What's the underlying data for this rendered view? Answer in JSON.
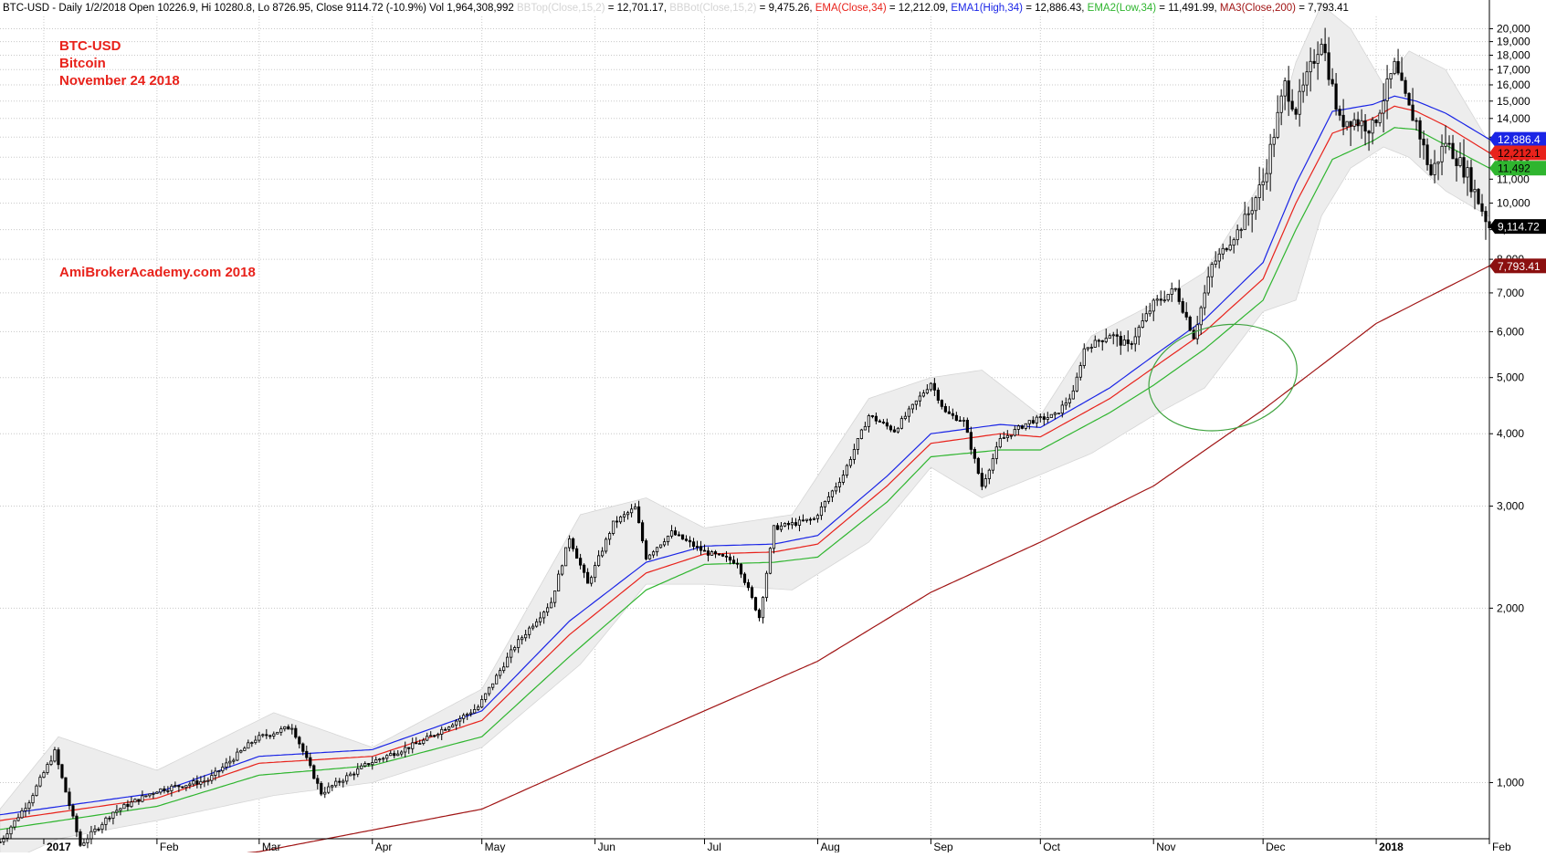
{
  "header": {
    "segments": [
      {
        "text": "BTC-USD - Daily 1/2/2018 Open 10226.9, Hi 10280.8, Lo 8726.95, Close 9114.72 (-10.9%) Vol 1,964,308,992 ",
        "color": "#000000"
      },
      {
        "text": "BBTop(Close,15,2)",
        "color": "#d4d4d4"
      },
      {
        "text": " = 12,701.17, ",
        "color": "#000000"
      },
      {
        "text": "BBBot(Close,15,2)",
        "color": "#d4d4d4"
      },
      {
        "text": " = 9,475.26, ",
        "color": "#000000"
      },
      {
        "text": "EMA(Close,34)",
        "color": "#e8221b"
      },
      {
        "text": " = 12,212.09, ",
        "color": "#000000"
      },
      {
        "text": "EMA1(High,34)",
        "color": "#1a25e6"
      },
      {
        "text": " = 12,886.43, ",
        "color": "#000000"
      },
      {
        "text": "EMA2(Low,34)",
        "color": "#2fb52f"
      },
      {
        "text": " = 11,491.99, ",
        "color": "#000000"
      },
      {
        "text": "MA3(Close,200)",
        "color": "#a01414"
      },
      {
        "text": " = 7,793.41",
        "color": "#000000"
      }
    ]
  },
  "annotations": {
    "title_lines": [
      "BTC-USD",
      "Bitcoin",
      "November 24 2018"
    ],
    "watermark": "AmiBrokerAcademy.com  2018",
    "color": "#e8221b"
  },
  "chart_data": {
    "type": "candlestick",
    "title": "BTC-USD",
    "y_scale": "log",
    "ylim": [
      800,
      21000
    ],
    "y_ticks": [
      1000,
      2000,
      3000,
      4000,
      5000,
      6000,
      7000,
      8000,
      9000,
      10000,
      11000,
      12000,
      13000,
      14000,
      15000,
      16000,
      17000,
      18000,
      19000,
      20000
    ],
    "y_tick_labels": [
      "1,000",
      "2,000",
      "3,000",
      "4,000",
      "5,000",
      "6,000",
      "7,000",
      "8,000",
      "9,000",
      "10,000",
      "11,000",
      "12,000",
      "13,000",
      "14,000",
      "15,000",
      "16,000",
      "17,000",
      "18,000",
      "19,000",
      "20,000"
    ],
    "x_range": [
      "2016-12-20",
      "2018-02-01"
    ],
    "x_ticks": [
      {
        "date": "2017-01-01",
        "label": "2017",
        "bold": true
      },
      {
        "date": "2017-02-01",
        "label": "Feb"
      },
      {
        "date": "2017-03-01",
        "label": "Mar"
      },
      {
        "date": "2017-04-01",
        "label": "Apr"
      },
      {
        "date": "2017-05-01",
        "label": "May"
      },
      {
        "date": "2017-06-01",
        "label": "Jun"
      },
      {
        "date": "2017-07-01",
        "label": "Jul"
      },
      {
        "date": "2017-08-01",
        "label": "Aug"
      },
      {
        "date": "2017-09-01",
        "label": "Sep"
      },
      {
        "date": "2017-10-01",
        "label": "Oct"
      },
      {
        "date": "2017-11-01",
        "label": "Nov"
      },
      {
        "date": "2017-12-01",
        "label": "Dec"
      },
      {
        "date": "2018-01-01",
        "label": "2018",
        "bold": true
      },
      {
        "date": "2018-02-01",
        "label": "Feb"
      }
    ],
    "grid": true,
    "close_anchors": [
      [
        "2016-12-20",
        790
      ],
      [
        "2016-12-28",
        930
      ],
      [
        "2017-01-04",
        1130
      ],
      [
        "2017-01-11",
        780
      ],
      [
        "2017-01-20",
        890
      ],
      [
        "2017-02-01",
        970
      ],
      [
        "2017-02-15",
        1010
      ],
      [
        "2017-02-28",
        1190
      ],
      [
        "2017-03-10",
        1250
      ],
      [
        "2017-03-18",
        960
      ],
      [
        "2017-03-31",
        1080
      ],
      [
        "2017-04-15",
        1180
      ],
      [
        "2017-04-30",
        1350
      ],
      [
        "2017-05-10",
        1720
      ],
      [
        "2017-05-20",
        2050
      ],
      [
        "2017-05-25",
        2650
      ],
      [
        "2017-05-30",
        2200
      ],
      [
        "2017-06-06",
        2800
      ],
      [
        "2017-06-12",
        2980
      ],
      [
        "2017-06-15",
        2450
      ],
      [
        "2017-06-22",
        2700
      ],
      [
        "2017-07-01",
        2500
      ],
      [
        "2017-07-10",
        2400
      ],
      [
        "2017-07-16",
        1930
      ],
      [
        "2017-07-20",
        2750
      ],
      [
        "2017-07-31",
        2850
      ],
      [
        "2017-08-08",
        3400
      ],
      [
        "2017-08-15",
        4300
      ],
      [
        "2017-08-22",
        4050
      ],
      [
        "2017-09-01",
        4900
      ],
      [
        "2017-09-05",
        4350
      ],
      [
        "2017-09-10",
        4200
      ],
      [
        "2017-09-15",
        3250
      ],
      [
        "2017-09-20",
        3900
      ],
      [
        "2017-09-28",
        4200
      ],
      [
        "2017-10-05",
        4300
      ],
      [
        "2017-10-10",
        4700
      ],
      [
        "2017-10-13",
        5600
      ],
      [
        "2017-10-20",
        5950
      ],
      [
        "2017-10-25",
        5650
      ],
      [
        "2017-11-01",
        6700
      ],
      [
        "2017-11-07",
        7100
      ],
      [
        "2017-11-12",
        5900
      ],
      [
        "2017-11-17",
        7800
      ],
      [
        "2017-11-26",
        9300
      ],
      [
        "2017-12-01",
        10900
      ],
      [
        "2017-12-07",
        16000
      ],
      [
        "2017-12-10",
        14500
      ],
      [
        "2017-12-17",
        19300
      ],
      [
        "2017-12-22",
        13800
      ],
      [
        "2017-12-25",
        14000
      ],
      [
        "2017-12-31",
        13500
      ],
      [
        "2018-01-06",
        17200
      ],
      [
        "2018-01-10",
        14500
      ],
      [
        "2018-01-12",
        13800
      ],
      [
        "2018-01-16",
        11200
      ],
      [
        "2018-01-20",
        12800
      ],
      [
        "2018-01-26",
        11200
      ],
      [
        "2018-02-01",
        9115
      ]
    ],
    "indicators": [
      {
        "name": "EMA(Close,34)",
        "color": "#e8221b",
        "last_label": "12,212.1",
        "points": [
          [
            "2016-12-20",
            860
          ],
          [
            "2017-02-01",
            940
          ],
          [
            "2017-03-01",
            1080
          ],
          [
            "2017-04-01",
            1110
          ],
          [
            "2017-05-01",
            1280
          ],
          [
            "2017-05-25",
            1800
          ],
          [
            "2017-06-15",
            2300
          ],
          [
            "2017-07-01",
            2480
          ],
          [
            "2017-07-20",
            2500
          ],
          [
            "2017-08-01",
            2580
          ],
          [
            "2017-08-20",
            3250
          ],
          [
            "2017-09-01",
            3850
          ],
          [
            "2017-09-20",
            4000
          ],
          [
            "2017-10-01",
            3950
          ],
          [
            "2017-10-20",
            4600
          ],
          [
            "2017-11-01",
            5200
          ],
          [
            "2017-11-15",
            6000
          ],
          [
            "2017-12-01",
            7400
          ],
          [
            "2017-12-10",
            10000
          ],
          [
            "2017-12-20",
            13200
          ],
          [
            "2017-12-31",
            14000
          ],
          [
            "2018-01-06",
            14700
          ],
          [
            "2018-01-12",
            14400
          ],
          [
            "2018-01-20",
            13600
          ],
          [
            "2018-02-01",
            12212
          ]
        ]
      },
      {
        "name": "EMA1(High,34)",
        "color": "#1a25e6",
        "last_label": "12,886.4",
        "points": [
          [
            "2016-12-20",
            880
          ],
          [
            "2017-02-01",
            960
          ],
          [
            "2017-03-01",
            1110
          ],
          [
            "2017-04-01",
            1140
          ],
          [
            "2017-05-01",
            1330
          ],
          [
            "2017-05-25",
            1900
          ],
          [
            "2017-06-15",
            2400
          ],
          [
            "2017-07-01",
            2560
          ],
          [
            "2017-07-20",
            2580
          ],
          [
            "2017-08-01",
            2670
          ],
          [
            "2017-08-20",
            3380
          ],
          [
            "2017-09-01",
            4000
          ],
          [
            "2017-09-20",
            4150
          ],
          [
            "2017-10-01",
            4100
          ],
          [
            "2017-10-20",
            4800
          ],
          [
            "2017-11-01",
            5450
          ],
          [
            "2017-11-15",
            6300
          ],
          [
            "2017-12-01",
            7900
          ],
          [
            "2017-12-10",
            10800
          ],
          [
            "2017-12-20",
            14400
          ],
          [
            "2017-12-31",
            14800
          ],
          [
            "2018-01-06",
            15300
          ],
          [
            "2018-01-12",
            15000
          ],
          [
            "2018-01-20",
            14300
          ],
          [
            "2018-02-01",
            12886
          ]
        ]
      },
      {
        "name": "EMA2(Low,34)",
        "color": "#2fb52f",
        "last_label": "11,492",
        "points": [
          [
            "2016-12-20",
            830
          ],
          [
            "2017-02-01",
            910
          ],
          [
            "2017-03-01",
            1030
          ],
          [
            "2017-04-01",
            1070
          ],
          [
            "2017-05-01",
            1200
          ],
          [
            "2017-05-25",
            1650
          ],
          [
            "2017-06-15",
            2150
          ],
          [
            "2017-07-01",
            2380
          ],
          [
            "2017-07-20",
            2400
          ],
          [
            "2017-08-01",
            2450
          ],
          [
            "2017-08-20",
            3050
          ],
          [
            "2017-09-01",
            3650
          ],
          [
            "2017-09-20",
            3750
          ],
          [
            "2017-10-01",
            3750
          ],
          [
            "2017-10-20",
            4350
          ],
          [
            "2017-11-01",
            4850
          ],
          [
            "2017-11-15",
            5600
          ],
          [
            "2017-12-01",
            6800
          ],
          [
            "2017-12-10",
            9000
          ],
          [
            "2017-12-20",
            11900
          ],
          [
            "2017-12-31",
            12800
          ],
          [
            "2018-01-06",
            13500
          ],
          [
            "2018-01-12",
            13400
          ],
          [
            "2018-01-20",
            12600
          ],
          [
            "2018-02-01",
            11492
          ]
        ]
      },
      {
        "name": "MA3(Close,200)",
        "color": "#a01414",
        "last_label": "7,793.41",
        "points": [
          [
            "2016-12-20",
            680
          ],
          [
            "2017-03-01",
            760
          ],
          [
            "2017-05-01",
            900
          ],
          [
            "2017-06-01",
            1100
          ],
          [
            "2017-07-01",
            1330
          ],
          [
            "2017-08-01",
            1620
          ],
          [
            "2017-09-01",
            2130
          ],
          [
            "2017-10-01",
            2600
          ],
          [
            "2017-11-01",
            3250
          ],
          [
            "2017-12-01",
            4400
          ],
          [
            "2018-01-01",
            6200
          ],
          [
            "2018-02-01",
            7793
          ]
        ]
      }
    ],
    "bollinger": {
      "name_top": "BBTop(Close,15,2)",
      "name_bottom": "BBBot(Close,15,2)",
      "color": "#ededed",
      "upper": [
        [
          "2016-12-20",
          900
        ],
        [
          "2017-01-05",
          1200
        ],
        [
          "2017-02-01",
          1050
        ],
        [
          "2017-03-05",
          1320
        ],
        [
          "2017-04-01",
          1150
        ],
        [
          "2017-05-01",
          1450
        ],
        [
          "2017-05-28",
          2900
        ],
        [
          "2017-06-15",
          3100
        ],
        [
          "2017-07-01",
          2750
        ],
        [
          "2017-07-25",
          2900
        ],
        [
          "2017-08-15",
          4600
        ],
        [
          "2017-09-01",
          5000
        ],
        [
          "2017-09-15",
          5150
        ],
        [
          "2017-10-01",
          4300
        ],
        [
          "2017-10-15",
          5900
        ],
        [
          "2017-11-01",
          6700
        ],
        [
          "2017-11-15",
          7600
        ],
        [
          "2017-12-01",
          11000
        ],
        [
          "2017-12-10",
          17500
        ],
        [
          "2017-12-17",
          22000
        ],
        [
          "2017-12-25",
          20000
        ],
        [
          "2018-01-03",
          16000
        ],
        [
          "2018-01-10",
          18300
        ],
        [
          "2018-01-20",
          17000
        ],
        [
          "2018-02-01",
          12701
        ]
      ],
      "lower": [
        [
          "2016-12-20",
          720
        ],
        [
          "2017-01-05",
          800
        ],
        [
          "2017-02-01",
          860
        ],
        [
          "2017-03-05",
          950
        ],
        [
          "2017-04-01",
          1000
        ],
        [
          "2017-05-01",
          1150
        ],
        [
          "2017-05-28",
          1600
        ],
        [
          "2017-06-15",
          2200
        ],
        [
          "2017-07-01",
          2200
        ],
        [
          "2017-07-25",
          2150
        ],
        [
          "2017-08-15",
          2600
        ],
        [
          "2017-09-01",
          3500
        ],
        [
          "2017-09-15",
          3100
        ],
        [
          "2017-10-01",
          3400
        ],
        [
          "2017-10-15",
          3700
        ],
        [
          "2017-11-01",
          4300
        ],
        [
          "2017-11-15",
          4800
        ],
        [
          "2017-12-01",
          6500
        ],
        [
          "2017-12-10",
          6800
        ],
        [
          "2017-12-17",
          9500
        ],
        [
          "2017-12-25",
          11500
        ],
        [
          "2018-01-03",
          12500
        ],
        [
          "2018-01-10",
          12000
        ],
        [
          "2018-01-20",
          10500
        ],
        [
          "2018-02-01",
          9475
        ]
      ]
    },
    "value_labels": [
      {
        "value": 12886.43,
        "text": "12,886.4",
        "bg": "#1a25e6",
        "fg": "#ffffff"
      },
      {
        "value": 12212.09,
        "text": "12,212.1",
        "bg": "#e8221b",
        "fg": "#000000"
      },
      {
        "value": 11491.99,
        "text": "11,492",
        "bg": "#2fb52f",
        "fg": "#000000"
      },
      {
        "value": 9114.72,
        "text": "9,114.72",
        "bg": "#000000",
        "fg": "#ffffff"
      },
      {
        "value": 7793.41,
        "text": "7,793.41",
        "bg": "#8b0f0f",
        "fg": "#ffffff"
      }
    ],
    "highlight_ellipse": {
      "center_date": "2017-11-20",
      "center_value": 5000,
      "color": "#3fa33f"
    }
  }
}
